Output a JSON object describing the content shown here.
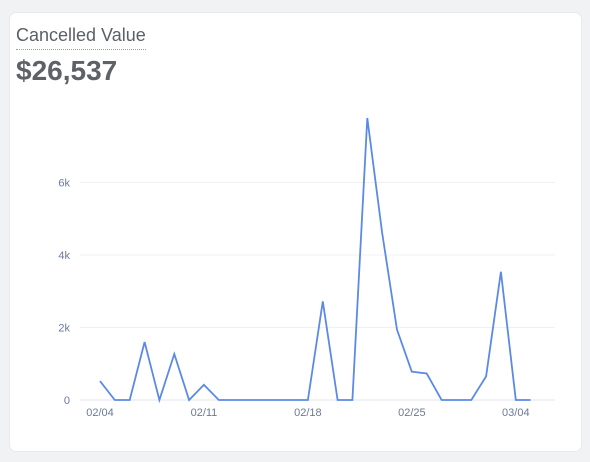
{
  "card": {
    "title": "Cancelled Value",
    "value": "$26,537"
  },
  "chart_data": {
    "type": "line",
    "title": "Cancelled Value",
    "xlabel": "",
    "ylabel": "",
    "x": [
      "02/04",
      "02/05",
      "02/06",
      "02/07",
      "02/08",
      "02/09",
      "02/10",
      "02/11",
      "02/12",
      "02/13",
      "02/14",
      "02/15",
      "02/16",
      "02/17",
      "02/18",
      "02/19",
      "02/20",
      "02/21",
      "02/22",
      "02/23",
      "02/24",
      "02/25",
      "02/26",
      "02/27",
      "02/28",
      "03/01",
      "03/02",
      "03/03",
      "03/04",
      "03/05"
    ],
    "x_tick_labels": [
      "02/04",
      "02/11",
      "02/18",
      "02/25",
      "03/04"
    ],
    "x_tick_indices": [
      0,
      7,
      14,
      21,
      28
    ],
    "series": [
      {
        "color": "#5b8ae6",
        "values": [
          520,
          0,
          0,
          1600,
          0,
          1270,
          0,
          420,
          0,
          0,
          0,
          0,
          0,
          0,
          0,
          2720,
          0,
          0,
          7780,
          4620,
          1940,
          780,
          730,
          0,
          0,
          0,
          650,
          3540,
          0,
          0
        ]
      }
    ],
    "y_ticks": [
      0,
      2000,
      4000,
      6000
    ],
    "y_tick_labels": [
      "0",
      "2k",
      "4k",
      "6k"
    ],
    "ylim": [
      0,
      8000
    ],
    "grid": true
  }
}
